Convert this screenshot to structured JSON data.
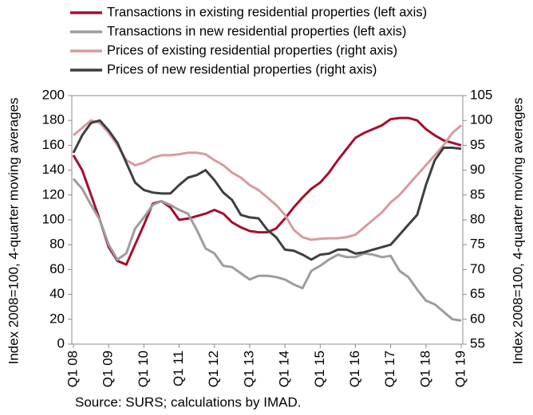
{
  "chart_data": {
    "type": "line",
    "categories": [
      "Q1 08",
      null,
      null,
      null,
      "Q1 09",
      null,
      null,
      null,
      "Q1 10",
      null,
      null,
      null,
      "Q1 11",
      null,
      null,
      null,
      "Q1 12",
      null,
      null,
      null,
      "Q1 13",
      null,
      null,
      null,
      "Q1 14",
      null,
      null,
      null,
      "Q1 15",
      null,
      null,
      null,
      "Q1 16",
      null,
      null,
      null,
      "Q1 17",
      null,
      null,
      null,
      "Q1 18",
      null,
      null,
      null,
      "Q1 19"
    ],
    "series": [
      {
        "name": "Transactions in existing residential properties (left axis)",
        "color": "#a50e2d",
        "values": [
          152,
          140,
          120,
          100,
          78,
          67,
          64,
          80,
          96,
          113,
          115,
          110,
          100,
          101,
          103,
          105,
          108,
          105,
          98,
          94,
          91,
          90,
          90,
          93,
          101,
          110,
          118,
          125,
          130,
          138,
          148,
          157,
          166,
          170,
          173,
          176,
          181,
          182,
          182,
          180,
          173,
          168,
          164,
          162,
          160
        ]
      },
      {
        "name": "Transactions in new residential properties (left axis)",
        "color": "#9d9d9d",
        "values": [
          133,
          125,
          112,
          100,
          80,
          68,
          73,
          93,
          102,
          112,
          115,
          112,
          108,
          105,
          92,
          77,
          73,
          63,
          62,
          57,
          52,
          55,
          55,
          54,
          52,
          48,
          45,
          59,
          63,
          68,
          72,
          70,
          70,
          73,
          72,
          70,
          71,
          59,
          54,
          44,
          35,
          32,
          26,
          20,
          19
        ]
      },
      {
        "name": "Prices of existing residential properties (right axis)",
        "color": "#d99a9e",
        "axis": "y2",
        "values": [
          97,
          98.5,
          100,
          99.5,
          97.5,
          95,
          92,
          91,
          91.5,
          92.5,
          93,
          93,
          93.2,
          93.5,
          93.5,
          93.2,
          92,
          91,
          89.5,
          88.5,
          87,
          86,
          84.5,
          83,
          81,
          78,
          76.5,
          76,
          76.2,
          76.3,
          76.3,
          76.5,
          77,
          78.5,
          80,
          81.5,
          83.5,
          85,
          87,
          89,
          91,
          93,
          95,
          97.5,
          99
        ]
      },
      {
        "name": "Prices of new residential properties (right axis)",
        "color": "#3f3f3f",
        "axis": "y2",
        "values": [
          93.5,
          97,
          99.5,
          100,
          98,
          95.5,
          91.5,
          87.5,
          86,
          85.5,
          85.3,
          85.3,
          87,
          88.5,
          89,
          90,
          88,
          85.5,
          84,
          81,
          80.5,
          80.3,
          78,
          76.5,
          74,
          73.8,
          73,
          72,
          73,
          73.2,
          74,
          74,
          73.2,
          73.5,
          74,
          74.5,
          75,
          77,
          79,
          81,
          87,
          92,
          94.5,
          94.5,
          94.3
        ]
      }
    ],
    "ylabel": "Index 2008=100, 4-quarter moving averages",
    "y2label": "Index 2008=100, 4-quarter moving averages",
    "ylim": [
      0,
      200
    ],
    "yticks": [
      0,
      20,
      40,
      60,
      80,
      100,
      120,
      140,
      160,
      180,
      200
    ],
    "y2lim": [
      55,
      105
    ],
    "y2ticks": [
      55,
      60,
      65,
      70,
      75,
      80,
      85,
      90,
      95,
      100,
      105
    ],
    "source": "Source: SURS; calculations by IMAD."
  }
}
